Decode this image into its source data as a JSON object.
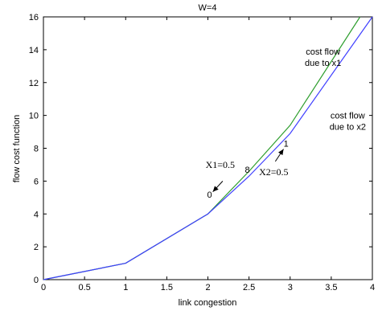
{
  "chart_data": {
    "type": "line",
    "title": "W=4",
    "xlabel": "link congestion",
    "ylabel": "flow cost function",
    "xlim": [
      0,
      4
    ],
    "ylim": [
      0,
      16
    ],
    "xticks": [
      "0",
      "0.5",
      "1",
      "1.5",
      "2",
      "2.5",
      "3",
      "3.5",
      "4"
    ],
    "yticks": [
      "0",
      "2",
      "4",
      "6",
      "8",
      "10",
      "12",
      "14",
      "16"
    ],
    "grid": false,
    "series": [
      {
        "color": "#2e9e2e",
        "x": [
          0,
          1,
          2,
          2.5,
          3,
          3.85
        ],
        "y": [
          0,
          1,
          4,
          6.6,
          9.4,
          16
        ]
      },
      {
        "color": "#3f3fff",
        "x": [
          0,
          1,
          2,
          2.5,
          3,
          4
        ],
        "y": [
          0,
          1,
          4,
          6.3,
          8.9,
          16
        ]
      }
    ],
    "annotations": [
      {
        "id": "cost-flow-x1",
        "lines": [
          "cost flow",
          "due to x1"
        ],
        "x": 3.4,
        "y": 13.7,
        "style": "sans"
      },
      {
        "id": "cost-flow-x2",
        "lines": [
          "cost flow",
          "due to x2"
        ],
        "x": 3.7,
        "y": 9.8,
        "style": "sans"
      },
      {
        "id": "x1-label",
        "lines": [
          "X1=0.5"
        ],
        "x": 2.15,
        "y": 6.8,
        "style": "serif"
      },
      {
        "id": "x2-label",
        "lines": [
          "X2=0.5"
        ],
        "x": 2.8,
        "y": 6.35,
        "style": "serif"
      },
      {
        "id": "marker-0",
        "lines": [
          "0"
        ],
        "x": 2.02,
        "y": 5.0,
        "style": "sans"
      },
      {
        "id": "marker-1",
        "lines": [
          "1"
        ],
        "x": 2.95,
        "y": 8.1,
        "style": "sans"
      },
      {
        "id": "marker-mid",
        "lines": [
          "8"
        ],
        "x": 2.48,
        "y": 6.5,
        "style": "sans"
      }
    ],
    "arrows": [
      {
        "id": "arrow-x1",
        "from": [
          2.18,
          6.0
        ],
        "to": [
          2.06,
          5.35
        ]
      },
      {
        "id": "arrow-x2",
        "from": [
          2.82,
          7.2
        ],
        "to": [
          2.92,
          7.95
        ]
      }
    ]
  }
}
